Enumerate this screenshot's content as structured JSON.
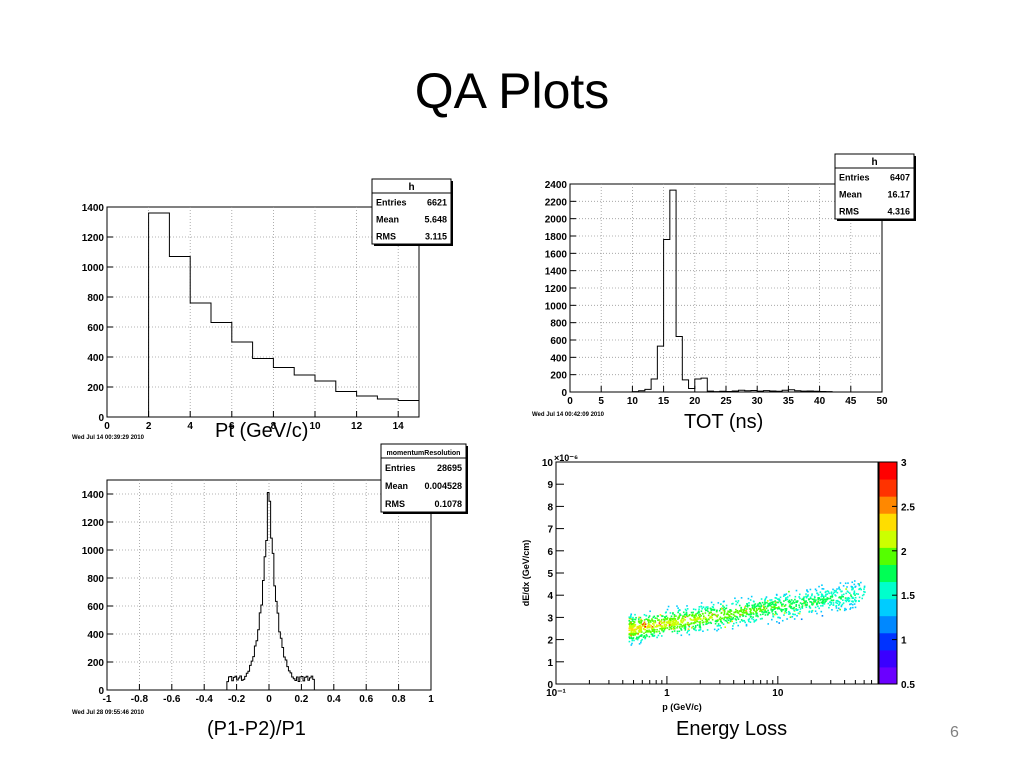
{
  "slide": {
    "title": "QA Plots",
    "page_number": "6"
  },
  "captions": {
    "pt": "Pt (GeV/c)",
    "tot": "TOT (ns)",
    "resolution": "(P1-P2)/P1",
    "energy_loss": "Energy Loss"
  },
  "chart_data": [
    {
      "type": "bar",
      "id": "pt",
      "title": "",
      "xlabel": "Pt (GeV/c)",
      "ylabel": "",
      "xlim": [
        0,
        15
      ],
      "ylim": [
        0,
        1400
      ],
      "grid": true,
      "x_ticks": [
        0,
        2,
        4,
        6,
        8,
        10,
        12,
        14
      ],
      "y_ticks": [
        0,
        200,
        400,
        600,
        800,
        1000,
        1200,
        1400
      ],
      "bin_edges": [
        2,
        3,
        4,
        5,
        6,
        7,
        8,
        9,
        10,
        11,
        12,
        13,
        14,
        15
      ],
      "values": [
        1360,
        1070,
        760,
        630,
        500,
        390,
        330,
        280,
        240,
        170,
        140,
        120,
        110
      ],
      "stats": {
        "name": "h",
        "rows": [
          [
            "Entries",
            "6621"
          ],
          [
            "Mean",
            "5.648"
          ],
          [
            "RMS",
            "3.115"
          ]
        ]
      },
      "stamp": "Wed Jul 14 00:39:29 2010"
    },
    {
      "type": "bar",
      "id": "tot",
      "title": "",
      "xlabel": "TOT (ns)",
      "ylabel": "",
      "xlim": [
        0,
        50
      ],
      "ylim": [
        0,
        2400
      ],
      "grid": true,
      "x_ticks": [
        0,
        5,
        10,
        15,
        20,
        25,
        30,
        35,
        40,
        45,
        50
      ],
      "y_ticks": [
        0,
        200,
        400,
        600,
        800,
        1000,
        1200,
        1400,
        1600,
        1800,
        2000,
        2200,
        2400
      ],
      "bin_edges": [
        10,
        11,
        12,
        13,
        14,
        15,
        16,
        17,
        18,
        19,
        20,
        21,
        22,
        23,
        24,
        25,
        26,
        27,
        28,
        29,
        30,
        31,
        32,
        33,
        34,
        35,
        36,
        37,
        38,
        39,
        40,
        41,
        42
      ],
      "values": [
        5,
        15,
        30,
        150,
        530,
        1760,
        2330,
        640,
        140,
        40,
        150,
        160,
        10,
        5,
        8,
        6,
        12,
        20,
        14,
        18,
        10,
        16,
        12,
        8,
        20,
        26,
        14,
        10,
        12,
        8,
        6,
        5
      ],
      "stats": {
        "name": "h",
        "rows": [
          [
            "Entries",
            "6407"
          ],
          [
            "Mean",
            "16.17"
          ],
          [
            "RMS",
            "4.316"
          ]
        ]
      },
      "stamp": "Wed Jul 14 00:42:09 2010"
    },
    {
      "type": "bar",
      "id": "resolution",
      "title": "",
      "xlabel": "(P1-P2)/P1",
      "ylabel": "",
      "xlim": [
        -1,
        1
      ],
      "ylim": [
        0,
        1500
      ],
      "grid": true,
      "x_ticks": [
        -1,
        -0.8,
        -0.6,
        -0.4,
        -0.2,
        0,
        0.2,
        0.4,
        0.6,
        0.8,
        1
      ],
      "y_ticks": [
        0,
        200,
        400,
        600,
        800,
        1000,
        1200,
        1400
      ],
      "hist_range": [
        -0.26,
        0.28
      ],
      "hist_center": 0.0,
      "hist_peak": 1490,
      "hist_width": 0.045,
      "stats": {
        "name": "momentumResolution",
        "rows": [
          [
            "Entries",
            "28695"
          ],
          [
            "Mean",
            "0.004528"
          ],
          [
            "RMS",
            "0.1078"
          ]
        ]
      },
      "stamp": "Wed Jul 28 09:55:46 2010"
    },
    {
      "type": "heatmap",
      "id": "energy_loss",
      "title": "",
      "xlabel": "p (GeV/c)",
      "ylabel": "dE/dx (GeV/cm)",
      "x_scale": "log",
      "xlim": [
        0.1,
        80
      ],
      "ylim": [
        0,
        10
      ],
      "y_multiplier": "×10⁻⁶",
      "x_ticks": [
        0.1,
        1,
        10
      ],
      "x_tick_labels": [
        "10⁻¹",
        "1",
        "10"
      ],
      "y_ticks": [
        0,
        1,
        2,
        3,
        4,
        5,
        6,
        7,
        8,
        9,
        10
      ],
      "grid": false,
      "band": {
        "x_start": 0.45,
        "x_end": 60,
        "y_at_start": 2.5,
        "y_at_end": 4.1,
        "thickness": 0.28
      },
      "colorbar": {
        "range": [
          0.5,
          3
        ],
        "ticks": [
          0.5,
          1,
          1.5,
          2,
          2.5,
          3
        ],
        "colors": [
          "#6b00ff",
          "#3a00ff",
          "#0033ff",
          "#0088ff",
          "#00ccff",
          "#00ffcc",
          "#00ff55",
          "#55ff00",
          "#ccff00",
          "#ffdd00",
          "#ff8800",
          "#ff3300",
          "#ff0000"
        ]
      }
    }
  ]
}
